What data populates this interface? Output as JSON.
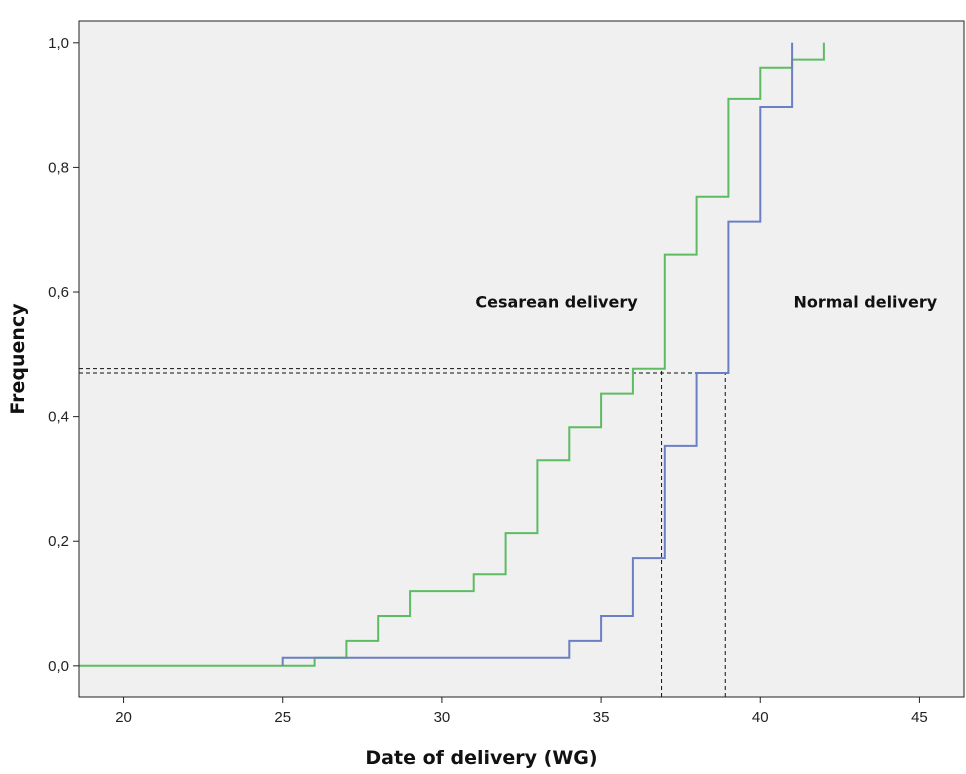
{
  "chart_data": {
    "type": "line",
    "step": true,
    "title": "",
    "xlabel": "Date of delivery (WG)",
    "ylabel": "Frequency",
    "xlim": [
      18.6,
      46.4
    ],
    "ylim": [
      -0.05,
      1.035
    ],
    "x_ticks": [
      20,
      25,
      30,
      35,
      40,
      45
    ],
    "x_tick_labels": [
      "20",
      "25",
      "30",
      "35",
      "40",
      "45"
    ],
    "y_ticks": [
      0.0,
      0.2,
      0.4,
      0.6,
      0.8,
      1.0
    ],
    "y_tick_labels": [
      "0,0",
      "0,2",
      "0,4",
      "0,6",
      "0,8",
      "1,0"
    ],
    "grid": false,
    "legend": "none",
    "colors": {
      "background": "#f0f0f0",
      "green_series": "#5dbb63",
      "blue_series": "#6a7fc4",
      "reference": "#111111"
    },
    "series": [
      {
        "color": "#5dbb63",
        "points": [
          [
            18.6,
            0.0
          ],
          [
            26,
            0.0
          ],
          [
            26,
            0.013
          ],
          [
            27,
            0.013
          ],
          [
            27,
            0.04
          ],
          [
            28,
            0.04
          ],
          [
            28,
            0.08
          ],
          [
            29,
            0.08
          ],
          [
            29,
            0.12
          ],
          [
            31,
            0.12
          ],
          [
            31,
            0.147
          ],
          [
            32,
            0.147
          ],
          [
            32,
            0.213
          ],
          [
            33,
            0.213
          ],
          [
            33,
            0.33
          ],
          [
            34,
            0.33
          ],
          [
            34,
            0.383
          ],
          [
            35,
            0.383
          ],
          [
            35,
            0.437
          ],
          [
            36,
            0.437
          ],
          [
            36,
            0.477
          ],
          [
            37,
            0.477
          ],
          [
            37,
            0.66
          ],
          [
            38,
            0.66
          ],
          [
            38,
            0.753
          ],
          [
            39,
            0.753
          ],
          [
            39,
            0.91
          ],
          [
            40,
            0.91
          ],
          [
            40,
            0.96
          ],
          [
            41,
            0.96
          ],
          [
            41,
            0.973
          ],
          [
            42,
            0.973
          ],
          [
            42,
            1.0
          ]
        ]
      },
      {
        "color": "#6a7fc4",
        "points": [
          [
            25,
            0.0
          ],
          [
            25,
            0.013
          ],
          [
            34,
            0.013
          ],
          [
            34,
            0.04
          ],
          [
            35,
            0.04
          ],
          [
            35,
            0.08
          ],
          [
            36,
            0.08
          ],
          [
            36,
            0.173
          ],
          [
            37,
            0.173
          ],
          [
            37,
            0.353
          ],
          [
            38,
            0.353
          ],
          [
            38,
            0.47
          ],
          [
            39,
            0.47
          ],
          [
            39,
            0.713
          ],
          [
            40,
            0.713
          ],
          [
            40,
            0.897
          ],
          [
            41,
            0.897
          ],
          [
            41,
            1.0
          ]
        ]
      }
    ],
    "reference_lines": [
      {
        "type": "horizontal",
        "y": 0.477,
        "x_end": 37
      },
      {
        "type": "horizontal",
        "y": 0.47,
        "x_end": 39
      },
      {
        "type": "vertical",
        "x": 36.9,
        "y_end": 0.477
      },
      {
        "type": "vertical",
        "x": 38.9,
        "y_end": 0.47
      }
    ],
    "annotations": [
      {
        "text": "Cesarean delivery",
        "x": 33.6,
        "y": 0.575
      },
      {
        "text": "Normal delivery",
        "x": 43.3,
        "y": 0.575
      }
    ]
  }
}
